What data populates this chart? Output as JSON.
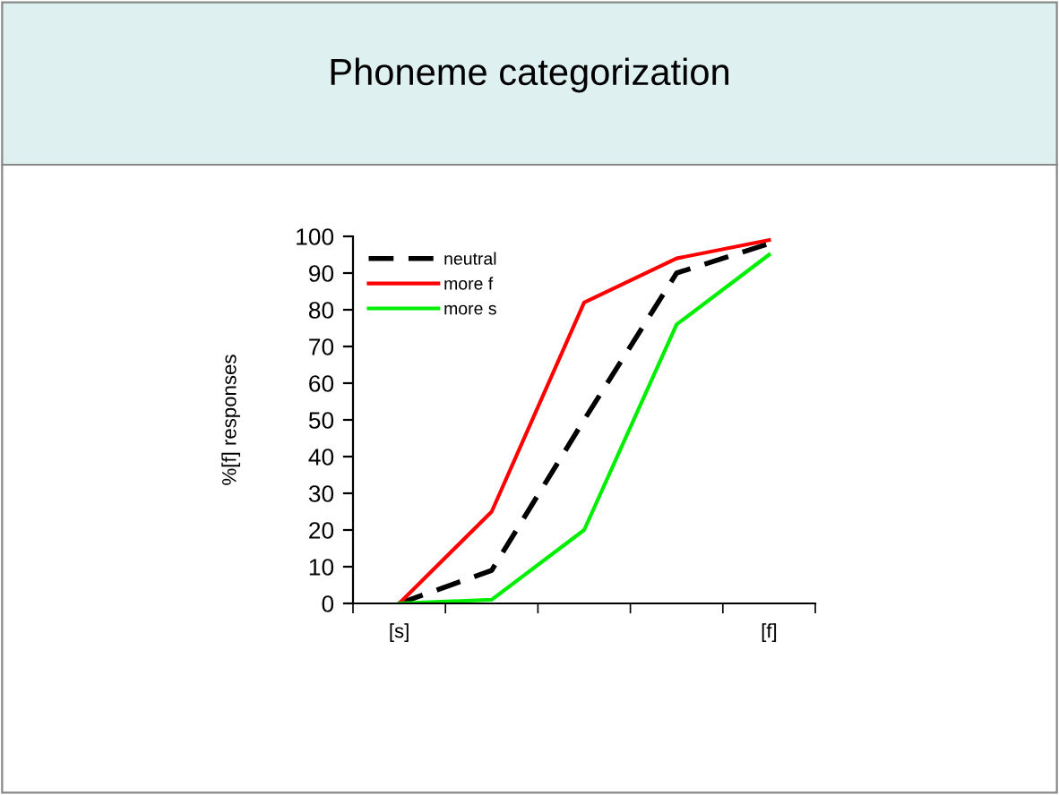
{
  "chart_data": {
    "type": "line",
    "title": "Phoneme categorization",
    "ylabel": "%[f] responses",
    "categories": [
      "[s]",
      null,
      null,
      null,
      "[f]"
    ],
    "series": [
      {
        "name": "neutral",
        "color": "#000000",
        "line_style": "dashed",
        "values": [
          0,
          9,
          50,
          90,
          98
        ]
      },
      {
        "name": "more f",
        "color": "#ff0000",
        "line_style": "solid",
        "values": [
          0,
          25,
          82,
          94,
          99
        ]
      },
      {
        "name": "more s",
        "color": "#00ee00",
        "line_style": "solid",
        "values": [
          0,
          1,
          20,
          76,
          95
        ]
      }
    ],
    "ylim": [
      0,
      100
    ],
    "yticks": [
      0,
      10,
      20,
      30,
      40,
      50,
      60,
      70,
      80,
      90,
      100
    ],
    "grid": false,
    "legend": "top left",
    "marker": "none"
  }
}
